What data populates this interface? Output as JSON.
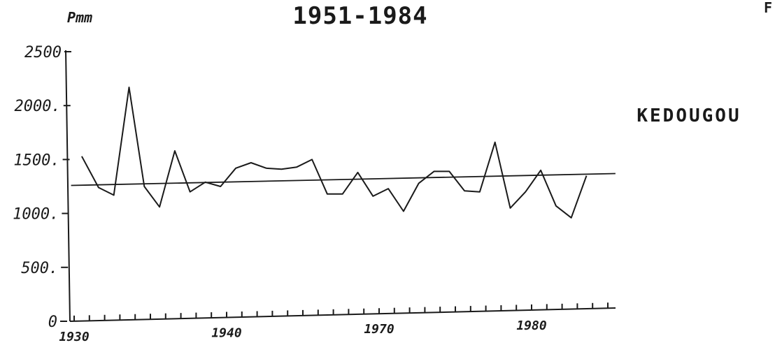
{
  "chart_data": {
    "type": "line",
    "title": "1951-1984",
    "station": "KEDOUGOU",
    "ylabel": "Pmm",
    "corner_mark": "F",
    "ylim": [
      0,
      2500
    ],
    "yticks": [
      {
        "value": 0,
        "label": "0"
      },
      {
        "value": 500,
        "label": "500."
      },
      {
        "value": 1000,
        "label": "1000."
      },
      {
        "value": 1500,
        "label": "1500."
      },
      {
        "value": 2000,
        "label": "2000."
      },
      {
        "value": 2500,
        "label": "2500"
      }
    ],
    "xaxis": {
      "range": [
        1930,
        1966
      ],
      "labeled_ticks": [
        {
          "value": 1930,
          "label": "1930"
        },
        {
          "value": 1940,
          "label": "1940"
        },
        {
          "value": 1950,
          "label": "1970"
        },
        {
          "value": 1960,
          "label": "1980"
        }
      ]
    },
    "series": [
      {
        "values": [
          [
            1930.5,
            1530
          ],
          [
            1931.6,
            1240
          ],
          [
            1932.6,
            1170
          ],
          [
            1933.6,
            2170
          ],
          [
            1934.6,
            1250
          ],
          [
            1935.6,
            1060
          ],
          [
            1936.6,
            1580
          ],
          [
            1937.6,
            1200
          ],
          [
            1938.6,
            1290
          ],
          [
            1939.6,
            1250
          ],
          [
            1940.6,
            1420
          ],
          [
            1941.6,
            1470
          ],
          [
            1942.6,
            1420
          ],
          [
            1943.6,
            1410
          ],
          [
            1944.6,
            1430
          ],
          [
            1945.6,
            1500
          ],
          [
            1946.6,
            1180
          ],
          [
            1947.6,
            1180
          ],
          [
            1948.6,
            1380
          ],
          [
            1949.6,
            1160
          ],
          [
            1950.6,
            1230
          ],
          [
            1951.6,
            1020
          ],
          [
            1952.6,
            1280
          ],
          [
            1953.6,
            1390
          ],
          [
            1954.6,
            1390
          ],
          [
            1955.6,
            1210
          ],
          [
            1956.6,
            1200
          ],
          [
            1957.6,
            1660
          ],
          [
            1958.6,
            1050
          ],
          [
            1959.6,
            1200
          ],
          [
            1960.6,
            1400
          ],
          [
            1961.6,
            1070
          ],
          [
            1962.6,
            960
          ],
          [
            1963.6,
            1350
          ]
        ]
      },
      {
        "values": [
          [
            1929.8,
            1260
          ],
          [
            1965.5,
            1370
          ]
        ]
      }
    ]
  }
}
